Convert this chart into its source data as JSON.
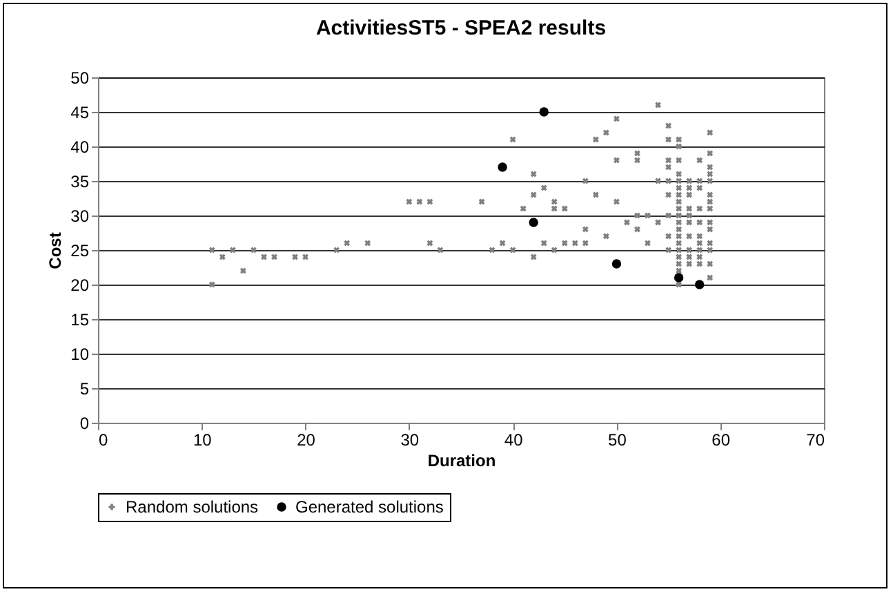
{
  "chart_data": {
    "type": "scatter",
    "title": "ActivitiesST5 - SPEA2 results",
    "xlabel": "Duration",
    "ylabel": "Cost",
    "xlim": [
      0,
      70
    ],
    "xticks": [
      0,
      10,
      20,
      30,
      40,
      50,
      60,
      70
    ],
    "ylim": [
      0,
      50
    ],
    "yticks": [
      0,
      5,
      10,
      15,
      20,
      25,
      30,
      35,
      40,
      45,
      50
    ],
    "grid": "y",
    "legend": "bottom",
    "series": [
      {
        "name": "Random solutions",
        "color": "#808080",
        "marker": "cross",
        "x": [
          11,
          11,
          12,
          13,
          14,
          15,
          16,
          17,
          19,
          20,
          23,
          24,
          26,
          30,
          31,
          32,
          32,
          33,
          37,
          38,
          39,
          40,
          40,
          41,
          42,
          42,
          42,
          43,
          43,
          44,
          44,
          44,
          45,
          45,
          46,
          47,
          47,
          47,
          48,
          48,
          49,
          49,
          50,
          50,
          50,
          51,
          52,
          52,
          52,
          52,
          53,
          53,
          54,
          54,
          54,
          55,
          55,
          55,
          55,
          55,
          55,
          55,
          55,
          55,
          56,
          56,
          56,
          56,
          56,
          56,
          56,
          56,
          56,
          56,
          56,
          56,
          56,
          56,
          56,
          56,
          56,
          56,
          56,
          57,
          57,
          57,
          57,
          57,
          57,
          57,
          57,
          57,
          57,
          58,
          58,
          58,
          58,
          58,
          58,
          58,
          58,
          58,
          58,
          59,
          59,
          59,
          59,
          59,
          59,
          59,
          59,
          59,
          59,
          59,
          59,
          59,
          59
        ],
        "values": [
          25,
          20,
          24,
          25,
          22,
          25,
          24,
          24,
          24,
          24,
          25,
          26,
          26,
          32,
          32,
          32,
          26,
          25,
          32,
          25,
          26,
          25,
          41,
          31,
          36,
          33,
          24,
          34,
          26,
          32,
          31,
          25,
          31,
          26,
          26,
          35,
          28,
          26,
          41,
          33,
          42,
          27,
          44,
          38,
          32,
          29,
          39,
          38,
          30,
          28,
          30,
          26,
          46,
          35,
          29,
          43,
          41,
          38,
          37,
          35,
          33,
          30,
          27,
          25,
          41,
          40,
          38,
          36,
          35,
          34,
          33,
          32,
          31,
          30,
          29,
          28,
          27,
          26,
          25,
          24,
          23,
          22,
          20,
          35,
          34,
          33,
          31,
          30,
          29,
          27,
          25,
          24,
          23,
          38,
          35,
          34,
          31,
          29,
          27,
          26,
          25,
          24,
          23,
          42,
          39,
          37,
          36,
          35,
          33,
          32,
          31,
          29,
          28,
          26,
          25,
          23,
          21
        ]
      },
      {
        "name": "Generated solutions",
        "color": "#000000",
        "marker": "circle",
        "x": [
          39,
          42,
          43,
          50,
          56,
          58
        ],
        "values": [
          37,
          29,
          45,
          23,
          21,
          20
        ]
      }
    ]
  }
}
